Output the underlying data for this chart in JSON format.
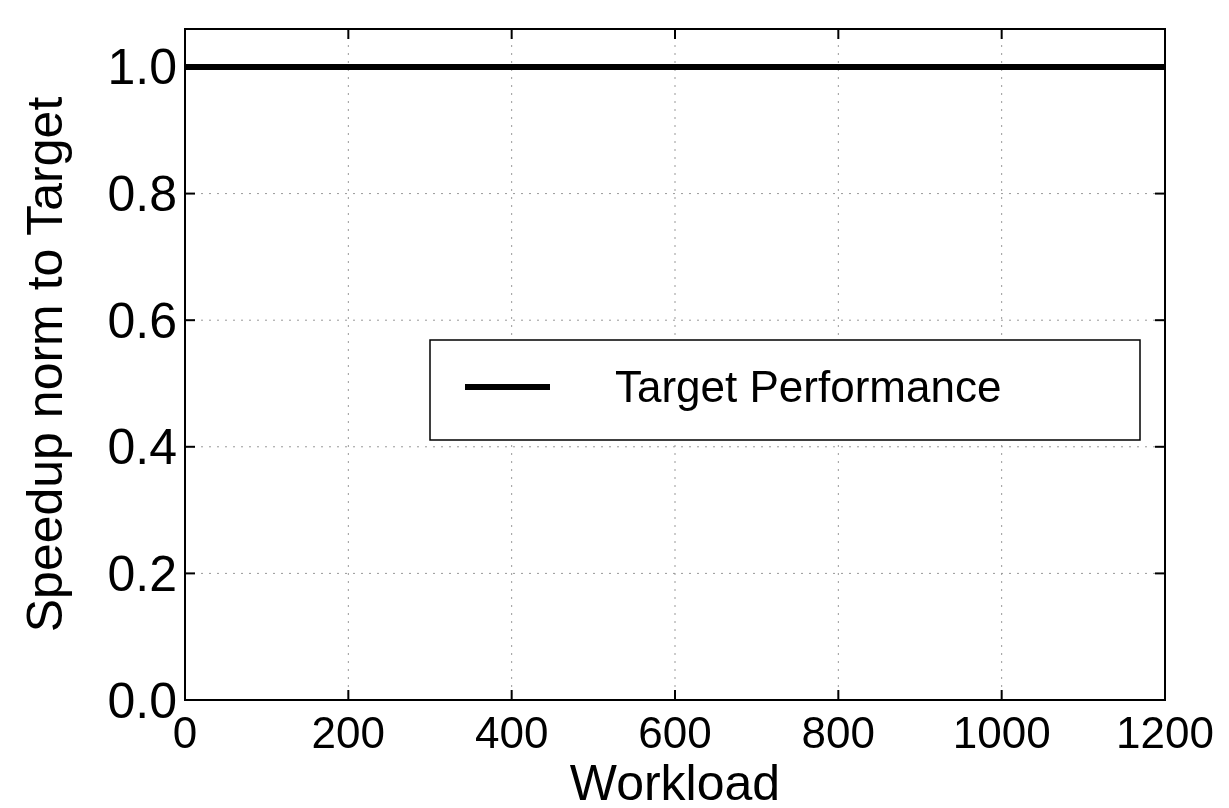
{
  "chart_data": {
    "type": "line",
    "xlabel": "Workload",
    "ylabel": "Speedup norm to Target",
    "x": [
      0,
      1200
    ],
    "series": [
      {
        "name": "Target Performance",
        "color": "#000000",
        "values": [
          1.0,
          1.0
        ]
      }
    ],
    "xlim": [
      0,
      1200
    ],
    "xticks": [
      0,
      200,
      400,
      600,
      800,
      1000,
      1200
    ],
    "ylim": [
      0,
      1.06
    ],
    "yticks": [
      {
        "value": 0,
        "label": "0.0"
      },
      0.2,
      0.4,
      0.6,
      0.8,
      {
        "value": 1,
        "label": "1.0"
      }
    ],
    "grid": true,
    "legend": "right",
    "line_style": "solid"
  }
}
